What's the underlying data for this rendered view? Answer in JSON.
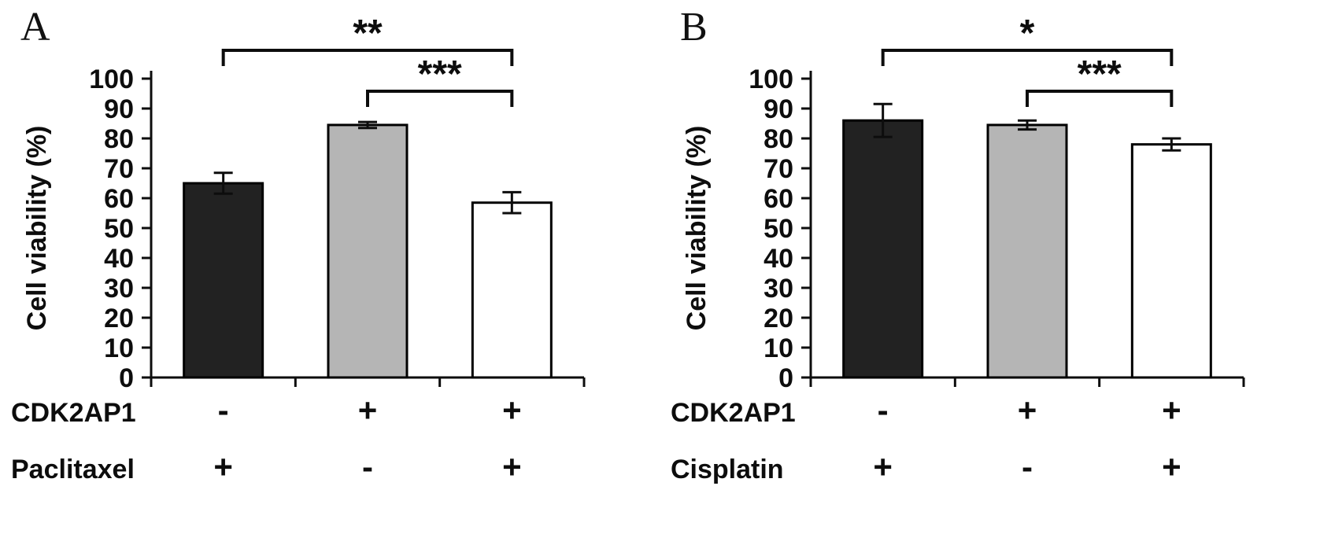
{
  "figure": {
    "background_color": "#ffffff",
    "ink_color": "#0d0d0d"
  },
  "chart_data": [
    {
      "type": "bar",
      "panel": "A",
      "title": "",
      "xlabel": "",
      "ylabel": "Cell viability (%)",
      "ylim": [
        0,
        100
      ],
      "yticks": [
        0,
        10,
        20,
        30,
        40,
        50,
        60,
        70,
        80,
        90,
        100
      ],
      "grid": false,
      "legend": "none",
      "categories": [
        "CDK2AP1- / Paclitaxel+",
        "CDK2AP1+ / Paclitaxel-",
        "CDK2AP1+ / Paclitaxel+"
      ],
      "values": [
        65,
        84.5,
        58.5
      ],
      "errors": [
        3.5,
        1,
        3.5
      ],
      "bar_fill_colors": [
        "#222222",
        "#b5b5b5",
        "#ffffff"
      ],
      "bar_edge_color": "#000000",
      "significance_brackets": [
        {
          "from_bar": 0,
          "to_bar": 2,
          "label": "**"
        },
        {
          "from_bar": 1,
          "to_bar": 2,
          "label": "***"
        }
      ],
      "condition_rows": [
        {
          "label": "CDK2AP1",
          "values": [
            "-",
            "+",
            "+"
          ]
        },
        {
          "label": "Paclitaxel",
          "values": [
            "+",
            "-",
            "+"
          ]
        }
      ]
    },
    {
      "type": "bar",
      "panel": "B",
      "title": "",
      "xlabel": "",
      "ylabel": "Cell viability (%)",
      "ylim": [
        0,
        100
      ],
      "yticks": [
        0,
        10,
        20,
        30,
        40,
        50,
        60,
        70,
        80,
        90,
        100
      ],
      "grid": false,
      "legend": "none",
      "categories": [
        "CDK2AP1- / Cisplatin+",
        "CDK2AP1+ / Cisplatin-",
        "CDK2AP1+ / Cisplatin+"
      ],
      "values": [
        86,
        84.5,
        78
      ],
      "errors": [
        5.5,
        1.5,
        2
      ],
      "bar_fill_colors": [
        "#222222",
        "#b5b5b5",
        "#ffffff"
      ],
      "bar_edge_color": "#000000",
      "significance_brackets": [
        {
          "from_bar": 0,
          "to_bar": 2,
          "label": "*"
        },
        {
          "from_bar": 1,
          "to_bar": 2,
          "label": "***"
        }
      ],
      "condition_rows": [
        {
          "label": "CDK2AP1",
          "values": [
            "-",
            "+",
            "+"
          ]
        },
        {
          "label": "Cisplatin",
          "values": [
            "+",
            "-",
            "+"
          ]
        }
      ]
    }
  ]
}
